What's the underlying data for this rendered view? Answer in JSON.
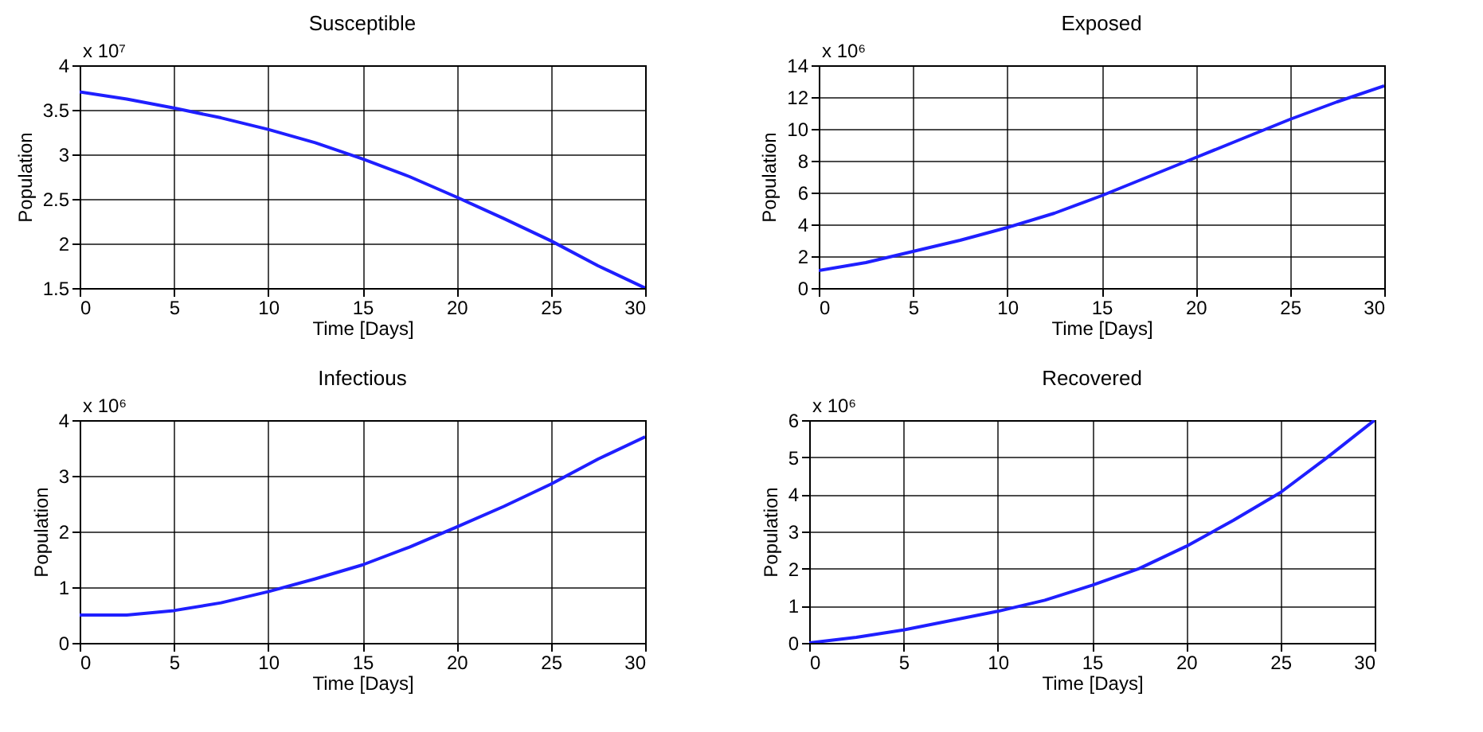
{
  "chart_data": [
    {
      "type": "line",
      "title": "Susceptible",
      "xlabel": "Time [Days]",
      "ylabel": "Population",
      "annotations": [
        "x 10⁷"
      ],
      "x": [
        0,
        2.5,
        5,
        7.5,
        10,
        12.5,
        15,
        17.5,
        20,
        22.5,
        25,
        27.5,
        30
      ],
      "series": [
        {
          "color": "#1f1fff",
          "values": [
            3.7,
            3.62,
            3.52,
            3.41,
            3.28,
            3.13,
            2.95,
            2.75,
            2.52,
            2.28,
            2.03,
            1.75,
            1.5
          ]
        }
      ],
      "xlim": [
        0,
        30
      ],
      "xticks": [
        0,
        5,
        10,
        15,
        20,
        25,
        30
      ],
      "ylim": [
        1.5,
        4
      ],
      "yticks": [
        1.5,
        2,
        2.5,
        3,
        3.5,
        4
      ],
      "grid": true,
      "line_style": "solid"
    },
    {
      "type": "line",
      "title": "Exposed",
      "xlabel": "Time [Days]",
      "ylabel": "Population",
      "annotations": [
        "x 10⁶"
      ],
      "x": [
        0,
        2.5,
        5,
        7.5,
        10,
        12.5,
        15,
        17.5,
        20,
        22.5,
        25,
        27.5,
        30
      ],
      "series": [
        {
          "color": "#1f1fff",
          "values": [
            1.1,
            1.6,
            2.3,
            3.0,
            3.8,
            4.7,
            5.8,
            7.0,
            8.2,
            9.4,
            10.6,
            11.7,
            12.7
          ]
        }
      ],
      "xlim": [
        0,
        30
      ],
      "xticks": [
        0,
        5,
        10,
        15,
        20,
        25,
        30
      ],
      "ylim": [
        0,
        14
      ],
      "yticks": [
        0,
        2,
        4,
        6,
        8,
        10,
        12,
        14
      ],
      "grid": true,
      "line_style": "solid"
    },
    {
      "type": "line",
      "title": "Infectious",
      "xlabel": "Time [Days]",
      "ylabel": "Population",
      "annotations": [
        "x 10⁶"
      ],
      "x": [
        0,
        2.5,
        5,
        7.5,
        10,
        12.5,
        15,
        17.5,
        20,
        22.5,
        25,
        27.5,
        30
      ],
      "series": [
        {
          "color": "#1f1fff",
          "values": [
            0.5,
            0.5,
            0.58,
            0.72,
            0.92,
            1.15,
            1.4,
            1.72,
            2.08,
            2.45,
            2.85,
            3.3,
            3.7
          ]
        }
      ],
      "xlim": [
        0,
        30
      ],
      "xticks": [
        0,
        5,
        10,
        15,
        20,
        25,
        30
      ],
      "ylim": [
        0,
        4
      ],
      "yticks": [
        0,
        1,
        2,
        3,
        4
      ],
      "grid": true,
      "line_style": "solid"
    },
    {
      "type": "line",
      "title": "Recovered",
      "xlabel": "Time [Days]",
      "ylabel": "Population",
      "annotations": [
        "x 10⁶"
      ],
      "x": [
        0,
        2.5,
        5,
        7.5,
        10,
        12.5,
        15,
        17.5,
        20,
        22.5,
        25,
        27.5,
        30
      ],
      "series": [
        {
          "color": "#1f1fff",
          "values": [
            0,
            0.15,
            0.35,
            0.6,
            0.85,
            1.15,
            1.55,
            2.0,
            2.6,
            3.3,
            4.05,
            5.0,
            6.0
          ]
        }
      ],
      "xlim": [
        0,
        30
      ],
      "xticks": [
        0,
        5,
        10,
        15,
        20,
        25,
        30
      ],
      "ylim": [
        0,
        6
      ],
      "yticks": [
        0,
        1,
        2,
        3,
        4,
        5,
        6
      ],
      "grid": true,
      "line_style": "solid"
    }
  ]
}
